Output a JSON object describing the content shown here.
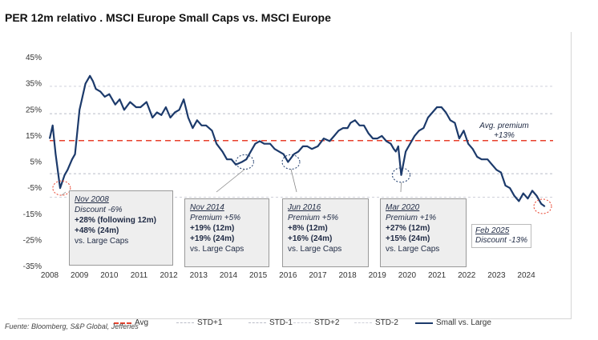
{
  "title": "PER 12m relativo . MSCI Europe Small Caps vs. MSCI Europe",
  "source": "Fuente: Bloomberg, S&P Global, Jefferies",
  "chart_data": {
    "type": "line",
    "ylim": [
      -35,
      45
    ],
    "yticks": [
      "45%",
      "35%",
      "25%",
      "15%",
      "5%",
      "-5%",
      "-15%",
      "-25%",
      "-35%"
    ],
    "ytick_values": [
      45,
      35,
      25,
      15,
      5,
      -5,
      -15,
      -25,
      -35
    ],
    "xlim": [
      2008,
      2024.9
    ],
    "xticks": [
      "2008",
      "2009",
      "2010",
      "2011",
      "2012",
      "2013",
      "2014",
      "2015",
      "2016",
      "2017",
      "2018",
      "2019",
      "2020",
      "2021",
      "2022",
      "2023",
      "2024"
    ],
    "xtick_values": [
      2008,
      2009,
      2010,
      2011,
      2012,
      2013,
      2014,
      2015,
      2016,
      2017,
      2018,
      2019,
      2020,
      2021,
      2022,
      2023,
      2024
    ],
    "reference_lines": [
      {
        "name": "Avg",
        "value": 13.2,
        "color": "#e8412c",
        "style": "dash"
      },
      {
        "name": "STD+1",
        "value": 23.5,
        "color": "#b9bcc8",
        "style": "dot"
      },
      {
        "name": "STD-1",
        "value": 0.5,
        "color": "#b9bcc8",
        "style": "dot"
      },
      {
        "name": "STD+2",
        "value": 34.0,
        "color": "#cfd1da",
        "style": "dot"
      },
      {
        "name": "STD-2",
        "value": -8.5,
        "color": "#cfd1da",
        "style": "dot"
      }
    ],
    "series": [
      {
        "name": "Small vs. Large",
        "color": "#1c3a6b",
        "x": [
          2008.0,
          2008.1,
          2008.2,
          2008.35,
          2008.5,
          2008.6,
          2008.75,
          2008.85,
          2009.0,
          2009.1,
          2009.2,
          2009.35,
          2009.45,
          2009.55,
          2009.7,
          2009.85,
          2010.0,
          2010.2,
          2010.35,
          2010.5,
          2010.7,
          2010.9,
          2011.05,
          2011.25,
          2011.45,
          2011.6,
          2011.75,
          2011.9,
          2012.05,
          2012.2,
          2012.35,
          2012.5,
          2012.65,
          2012.8,
          2012.95,
          2013.1,
          2013.25,
          2013.45,
          2013.6,
          2013.8,
          2013.95,
          2014.1,
          2014.25,
          2014.45,
          2014.6,
          2014.75,
          2014.9,
          2015.05,
          2015.2,
          2015.4,
          2015.55,
          2015.7,
          2015.85,
          2016.0,
          2016.2,
          2016.35,
          2016.5,
          2016.65,
          2016.8,
          2017.0,
          2017.2,
          2017.4,
          2017.55,
          2017.7,
          2017.85,
          2018.0,
          2018.1,
          2018.25,
          2018.4,
          2018.55,
          2018.7,
          2018.85,
          2019.0,
          2019.15,
          2019.3,
          2019.45,
          2019.55,
          2019.62,
          2019.7,
          2019.8,
          2019.95,
          2020.1,
          2020.25,
          2020.4,
          2020.55,
          2020.7,
          2020.85,
          2021.0,
          2021.15,
          2021.3,
          2021.45,
          2021.6,
          2021.75,
          2021.9,
          2022.05,
          2022.2,
          2022.35,
          2022.5,
          2022.7,
          2022.85,
          2023.0,
          2023.15,
          2023.3,
          2023.45,
          2023.6,
          2023.75,
          2023.9,
          2024.05,
          2024.2,
          2024.35,
          2024.5,
          2024.62
        ],
        "y": [
          14,
          19,
          8,
          -5,
          0,
          2,
          6,
          8,
          25,
          30,
          35,
          38,
          36,
          33,
          32,
          30,
          31,
          27,
          29,
          25,
          28,
          26,
          26,
          28,
          22,
          24,
          23,
          26,
          22,
          24,
          25,
          29,
          22,
          18,
          21,
          19,
          19,
          17,
          12,
          9,
          6,
          6,
          4,
          5,
          6,
          9,
          12,
          13,
          12,
          12,
          10,
          9,
          8,
          5,
          8,
          9,
          11,
          11,
          10,
          11,
          14,
          13,
          15,
          17,
          18,
          18,
          20,
          21,
          19,
          19,
          16,
          14,
          14,
          15,
          13,
          12,
          10,
          9,
          11,
          0,
          9,
          12,
          15,
          17,
          18,
          22,
          24,
          26,
          26,
          24,
          21,
          20,
          14,
          17,
          12,
          10,
          7,
          6,
          6,
          4,
          2,
          1,
          -4,
          -5,
          -8,
          -10,
          -7,
          -9,
          -6,
          -8,
          -11,
          -12
        ],
        "values_note": ""
      }
    ],
    "circles": [
      {
        "x": 2008.4,
        "y": -5,
        "color": "#e8412c"
      },
      {
        "x": 2014.55,
        "y": 5,
        "color": "#1c3a6b"
      },
      {
        "x": 2016.1,
        "y": 5,
        "color": "#1c3a6b"
      },
      {
        "x": 2019.8,
        "y": 0,
        "color": "#1c3a6b"
      },
      {
        "x": 2024.55,
        "y": -12,
        "color": "#e8412c"
      }
    ]
  },
  "annotations": [
    {
      "period": "Nov 2008",
      "change": "Discount -6%",
      "r1": "+28% (following 12m)",
      "r2": "+48% (24m)",
      "tail": "vs. Large Caps"
    },
    {
      "period": "Nov 2014",
      "change": "Premium +5%",
      "r1": "+19% (12m)",
      "r2": "+19% (24m)",
      "tail": "vs. Large Caps"
    },
    {
      "period": "Jun 2016",
      "change": "Premium +5%",
      "r1": "+8% (12m)",
      "r2": "+16% (24m)",
      "tail": "vs. Large Caps"
    },
    {
      "period": "Mar 2020",
      "change": "Premium +1%",
      "r1": "+27% (12m)",
      "r2": "+15% (24m)",
      "tail": "vs. Large Caps"
    }
  ],
  "avg_note": {
    "line1": "Avg. premium",
    "line2": "+13%"
  },
  "feb_note": {
    "line1": "Feb 2025",
    "line2": "Discount -13%"
  },
  "legend": [
    {
      "label": "Avg",
      "color": "#e8412c",
      "style": "dash"
    },
    {
      "label": "STD+1",
      "color": "#b9bcc8",
      "style": "dot"
    },
    {
      "label": "STD-1",
      "color": "#b9bcc8",
      "style": "dot"
    },
    {
      "label": "STD+2",
      "color": "#cfd1da",
      "style": "dot"
    },
    {
      "label": "STD-2",
      "color": "#cfd1da",
      "style": "dot"
    },
    {
      "label": "Small vs. Large",
      "color": "#1c3a6b",
      "style": "solid"
    }
  ]
}
